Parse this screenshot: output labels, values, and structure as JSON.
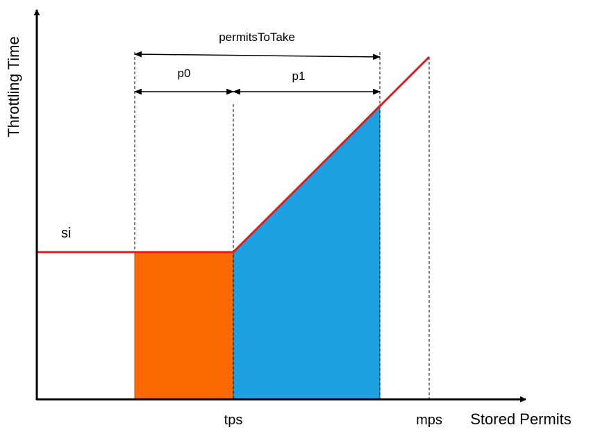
{
  "axes": {
    "y_title": "Throttling Time",
    "x_title": "Stored Permits"
  },
  "labels": {
    "si": "si",
    "tps": "tps",
    "mps": "mps",
    "p0": "p0",
    "p1": "p1",
    "permits_to_take": "permitsToTake"
  },
  "colors": {
    "axis": "#000000",
    "curve": "#e21b1b",
    "orange_region": "#fa6800",
    "blue_region": "#1ba1e2",
    "orange_border": "#c74a00",
    "blue_border": "#1b6fa2"
  }
}
